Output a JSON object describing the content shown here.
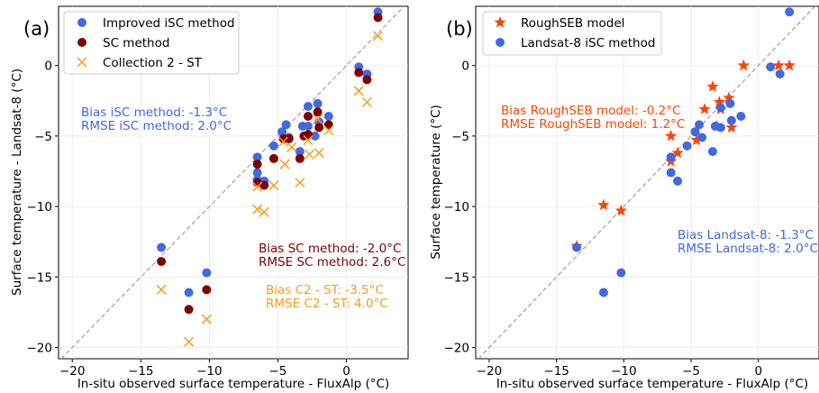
{
  "figure": {
    "panels": [
      {
        "id": "a",
        "panel_label": "(a)",
        "xlabel": "In-situ observed surface temperature - FluxAlp (°C)",
        "ylabel": "Surface temperature - Landsat-8 (°C)",
        "legend": [
          {
            "label": "Improved iSC method",
            "color": "#4169e1",
            "marker": "circle"
          },
          {
            "label": "SC method",
            "color": "#800000",
            "marker": "circle"
          },
          {
            "label": "Collection 2 - ST",
            "color": "#ff9a1a",
            "marker": "x"
          }
        ],
        "annotations": [
          {
            "lines": [
              "Bias iSC method: -1.3°C",
              "RMSE iSC method: 2.0°C"
            ],
            "color": "#4169e1"
          },
          {
            "lines": [
              "Bias SC method: -2.0°C",
              "RMSE SC method: 2.6°C"
            ],
            "color": "#800000"
          },
          {
            "lines": [
              "Bias C2 - ST: -3.5°C",
              "RMSE C2 - ST: 4.0°C"
            ],
            "color": "#ff9a1a"
          }
        ]
      },
      {
        "id": "b",
        "panel_label": "(b)",
        "xlabel": "In-situ observed surface temperature - FluxAlp (°C)",
        "ylabel": "Surface temperature (°C)",
        "legend": [
          {
            "label": "RoughSEB model",
            "color": "#ff4500",
            "marker": "star"
          },
          {
            "label": "Landsat-8 iSC method",
            "color": "#4169e1",
            "marker": "circle"
          }
        ],
        "annotations": [
          {
            "lines": [
              "Bias RoughSEB model: -0.2°C",
              "RMSE RoughSEB model: 1.2°C"
            ],
            "color": "#ff4500"
          },
          {
            "lines": [
              "Bias Landsat-8: -1.3°C",
              "RMSE Landsat-8: 2.0°C"
            ],
            "color": "#4169e1"
          }
        ]
      }
    ]
  },
  "chart_data": [
    {
      "type": "scatter",
      "panel": "a",
      "xlim": [
        -21,
        4.5
      ],
      "ylim": [
        -20.8,
        4.2
      ],
      "xticks": [
        -20,
        -15,
        -10,
        -5,
        0
      ],
      "yticks": [
        -20,
        -15,
        -10,
        -5,
        0
      ],
      "grid": true,
      "legend_position": "top-left",
      "reference_line": "1:1 dashed grey",
      "series": [
        {
          "name": "Improved iSC method",
          "color": "#4169e1",
          "marker": "circle",
          "points": [
            [
              -13.5,
              -12.9
            ],
            [
              -11.5,
              -16.1
            ],
            [
              -10.2,
              -14.7
            ],
            [
              -6.5,
              -6.5
            ],
            [
              -6.5,
              -7.6
            ],
            [
              -6.5,
              -8.1
            ],
            [
              -6.0,
              -8.2
            ],
            [
              -5.3,
              -5.7
            ],
            [
              -4.7,
              -4.7
            ],
            [
              -4.4,
              -4.2
            ],
            [
              -4.2,
              -5.1
            ],
            [
              -3.4,
              -6.1
            ],
            [
              -3.2,
              -4.3
            ],
            [
              -2.8,
              -4.3
            ],
            [
              -2.8,
              -2.9
            ],
            [
              -2.3,
              -5.0
            ],
            [
              -2.1,
              -2.7
            ],
            [
              -2.0,
              -4.0
            ],
            [
              -1.3,
              -3.6
            ],
            [
              0.9,
              -0.1
            ],
            [
              1.5,
              -0.6
            ],
            [
              2.3,
              3.8
            ]
          ]
        },
        {
          "name": "SC method",
          "color": "#800000",
          "marker": "circle",
          "points": [
            [
              -13.5,
              -13.9
            ],
            [
              -11.5,
              -17.3
            ],
            [
              -10.2,
              -15.9
            ],
            [
              -6.5,
              -7.0
            ],
            [
              -6.5,
              -8.3
            ],
            [
              -6.0,
              -8.5
            ],
            [
              -5.3,
              -6.6
            ],
            [
              -4.6,
              -5.2
            ],
            [
              -4.2,
              -5.2
            ],
            [
              -3.4,
              -6.6
            ],
            [
              -3.1,
              -5.0
            ],
            [
              -2.8,
              -3.6
            ],
            [
              -2.8,
              -4.9
            ],
            [
              -2.1,
              -3.3
            ],
            [
              -2.0,
              -4.4
            ],
            [
              -1.3,
              -4.2
            ],
            [
              0.9,
              -0.5
            ],
            [
              1.5,
              -1.0
            ],
            [
              2.3,
              3.4
            ]
          ]
        },
        {
          "name": "Collection 2 - ST",
          "color": "#ff9a1a",
          "marker": "x",
          "points": [
            [
              -13.5,
              -15.9
            ],
            [
              -11.5,
              -19.6
            ],
            [
              -10.2,
              -18.0
            ],
            [
              -6.5,
              -10.2
            ],
            [
              -6.5,
              -8.6
            ],
            [
              -6.0,
              -10.4
            ],
            [
              -5.3,
              -8.5
            ],
            [
              -4.6,
              -5.4
            ],
            [
              -4.5,
              -7.0
            ],
            [
              -4.0,
              -5.8
            ],
            [
              -3.4,
              -8.3
            ],
            [
              -2.8,
              -5.3
            ],
            [
              -2.7,
              -6.3
            ],
            [
              -2.1,
              -3.8
            ],
            [
              -2.0,
              -6.2
            ],
            [
              -1.3,
              -4.6
            ],
            [
              0.9,
              -1.8
            ],
            [
              1.5,
              -2.6
            ],
            [
              2.3,
              2.1
            ]
          ]
        }
      ]
    },
    {
      "type": "scatter",
      "panel": "b",
      "xlim": [
        -21,
        4.5
      ],
      "ylim": [
        -20.8,
        4.2
      ],
      "xticks": [
        -20,
        -15,
        -10,
        -5,
        0
      ],
      "yticks": [
        -20,
        -15,
        -10,
        -5,
        0
      ],
      "grid": true,
      "legend_position": "top-left",
      "reference_line": "1:1 dashed grey",
      "series": [
        {
          "name": "RoughSEB model",
          "color": "#ff4500",
          "marker": "star",
          "points": [
            [
              -13.5,
              -12.8
            ],
            [
              -11.5,
              -9.9
            ],
            [
              -10.2,
              -10.3
            ],
            [
              -6.5,
              -5.0
            ],
            [
              -6.5,
              -6.8
            ],
            [
              -6.0,
              -6.2
            ],
            [
              -4.6,
              -5.3
            ],
            [
              -4.0,
              -3.1
            ],
            [
              -3.4,
              -1.5
            ],
            [
              -3.1,
              -4.3
            ],
            [
              -2.9,
              -2.6
            ],
            [
              -2.8,
              -3.1
            ],
            [
              -2.2,
              -2.3
            ],
            [
              -2.0,
              -4.4
            ],
            [
              -1.1,
              0.0
            ],
            [
              1.5,
              0.0
            ],
            [
              2.3,
              0.0
            ]
          ]
        },
        {
          "name": "Landsat-8 iSC method",
          "color": "#4169e1",
          "marker": "circle",
          "points": [
            [
              -13.5,
              -12.9
            ],
            [
              -11.5,
              -16.1
            ],
            [
              -10.2,
              -14.7
            ],
            [
              -6.5,
              -6.5
            ],
            [
              -6.5,
              -7.6
            ],
            [
              -6.0,
              -8.2
            ],
            [
              -5.3,
              -5.7
            ],
            [
              -4.7,
              -4.7
            ],
            [
              -4.4,
              -4.2
            ],
            [
              -4.2,
              -5.1
            ],
            [
              -3.4,
              -6.1
            ],
            [
              -3.2,
              -4.3
            ],
            [
              -2.8,
              -4.4
            ],
            [
              -2.8,
              -3.0
            ],
            [
              -2.1,
              -2.7
            ],
            [
              -2.0,
              -3.9
            ],
            [
              -1.3,
              -3.6
            ],
            [
              0.9,
              -0.1
            ],
            [
              1.6,
              -0.6
            ],
            [
              2.3,
              3.8
            ]
          ]
        }
      ]
    }
  ]
}
